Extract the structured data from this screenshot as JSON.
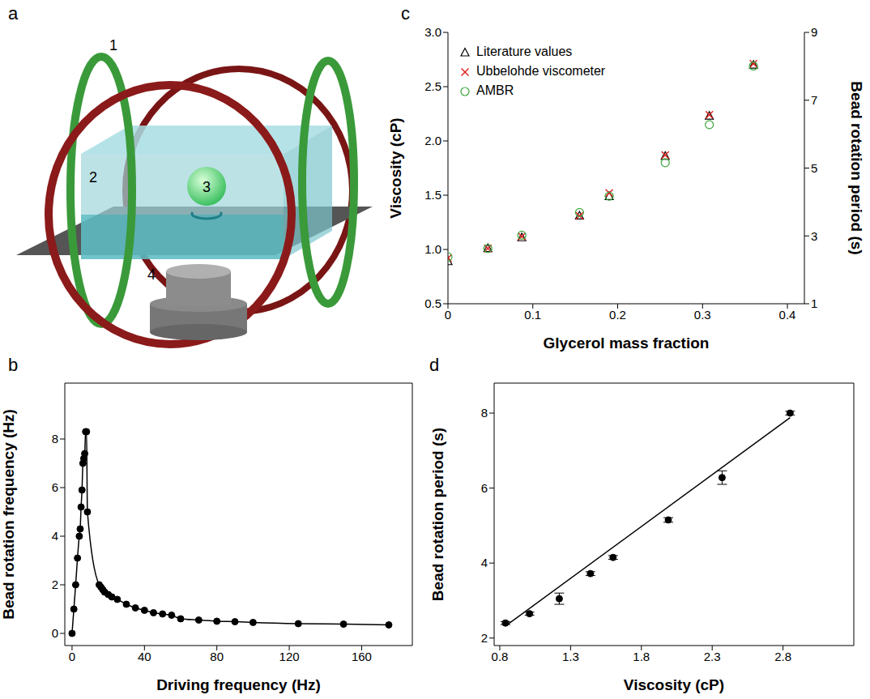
{
  "diagram": {
    "panel": "a",
    "labels": [
      "1",
      "2",
      "3",
      "4"
    ]
  },
  "chart_data": [
    {
      "panel": "b",
      "type": "line",
      "x_label": "Driving frequency (Hz)",
      "y_label": "Bead rotation frequency (Hz)",
      "x": [
        0,
        1,
        2,
        3,
        4,
        4.5,
        5,
        5.5,
        6,
        6.5,
        7,
        7.5,
        8,
        8.5,
        15,
        16,
        17,
        18,
        20,
        22,
        25,
        30,
        35,
        40,
        45,
        50,
        55,
        60,
        70,
        80,
        90,
        100,
        125,
        150,
        175
      ],
      "values": [
        0,
        1,
        2,
        3.1,
        4,
        4.3,
        5.2,
        5.9,
        7,
        7.2,
        7.4,
        8.3,
        8.3,
        5,
        2,
        1.9,
        1.8,
        1.7,
        1.6,
        1.5,
        1.4,
        1.2,
        1.05,
        0.95,
        0.85,
        0.8,
        0.75,
        0.6,
        0.55,
        0.5,
        0.48,
        0.45,
        0.4,
        0.38,
        0.35
      ],
      "color": "#000000",
      "marker": "circle",
      "line_style": "solid",
      "xlim": [
        -4,
        188
      ],
      "xticks": [
        0,
        40,
        80,
        120,
        160
      ],
      "ylim": [
        -0.5,
        10.3
      ],
      "yticks": [
        0,
        2,
        4,
        6,
        8
      ]
    },
    {
      "panel": "c",
      "type": "scatter",
      "x_label": "Glycerol mass fraction",
      "y_label": "Viscosity (cP)",
      "y2_label": "Bead rotation period (s)",
      "x": [
        0,
        0.047,
        0.087,
        0.155,
        0.19,
        0.256,
        0.308,
        0.36
      ],
      "series": [
        {
          "name": "Literature values",
          "color": "#000000",
          "marker": "triangle",
          "values": [
            0.89,
            1.01,
            1.11,
            1.31,
            1.49,
            1.86,
            2.23,
            2.7
          ]
        },
        {
          "name": "Ubbelohde viscometer",
          "color": "#e0201c",
          "marker": "x",
          "values": [
            0.92,
            1.01,
            1.12,
            1.31,
            1.52,
            1.87,
            2.24,
            2.71
          ]
        },
        {
          "name": "AMBR",
          "color": "#3aa63a",
          "marker": "open_circle",
          "axis": "y2",
          "values": [
            2.38,
            2.63,
            3.02,
            3.69,
            4.17,
            5.16,
            6.28,
            8.01
          ]
        }
      ],
      "legend": "upper left",
      "xlim": [
        0,
        0.42
      ],
      "xticks": [
        0,
        0.1,
        0.2,
        0.3,
        0.4
      ],
      "ylim": [
        0.5,
        3
      ],
      "yticks": [
        0.5,
        {
          "value": 1,
          "label": "1.0"
        },
        1.5,
        {
          "value": 2,
          "label": "2.0"
        },
        2.5,
        {
          "value": 3,
          "label": "3.0"
        }
      ],
      "y2lim": [
        1,
        9
      ],
      "y2ticks": [
        1,
        3,
        5,
        7,
        9
      ]
    },
    {
      "panel": "d",
      "type": "scatter",
      "x_label": "Viscosity (cP)",
      "y_label": "Bead rotation period (s)",
      "series": [
        {
          "type": "scatter",
          "color": "#000000",
          "marker": "circle",
          "x": [
            0.84,
            1.01,
            1.22,
            1.44,
            1.6,
            1.99,
            2.37,
            2.85
          ],
          "values": [
            2.4,
            2.65,
            3.05,
            3.72,
            4.15,
            5.15,
            6.28,
            8.0
          ],
          "errors": [
            0.04,
            0.04,
            0.15,
            0.05,
            0.05,
            0.06,
            0.18,
            0.05
          ]
        },
        {
          "type": "line",
          "color": "#000000",
          "line_style": "solid",
          "x": [
            0.84,
            2.85
          ],
          "values": [
            2.32,
            7.88
          ]
        }
      ],
      "xlim": [
        0.76,
        3.3
      ],
      "xticks": [
        0.8,
        1.3,
        1.8,
        2.3,
        2.8
      ],
      "ylim": [
        1.8,
        8.8
      ],
      "yticks": [
        2,
        4,
        6,
        8
      ]
    }
  ]
}
